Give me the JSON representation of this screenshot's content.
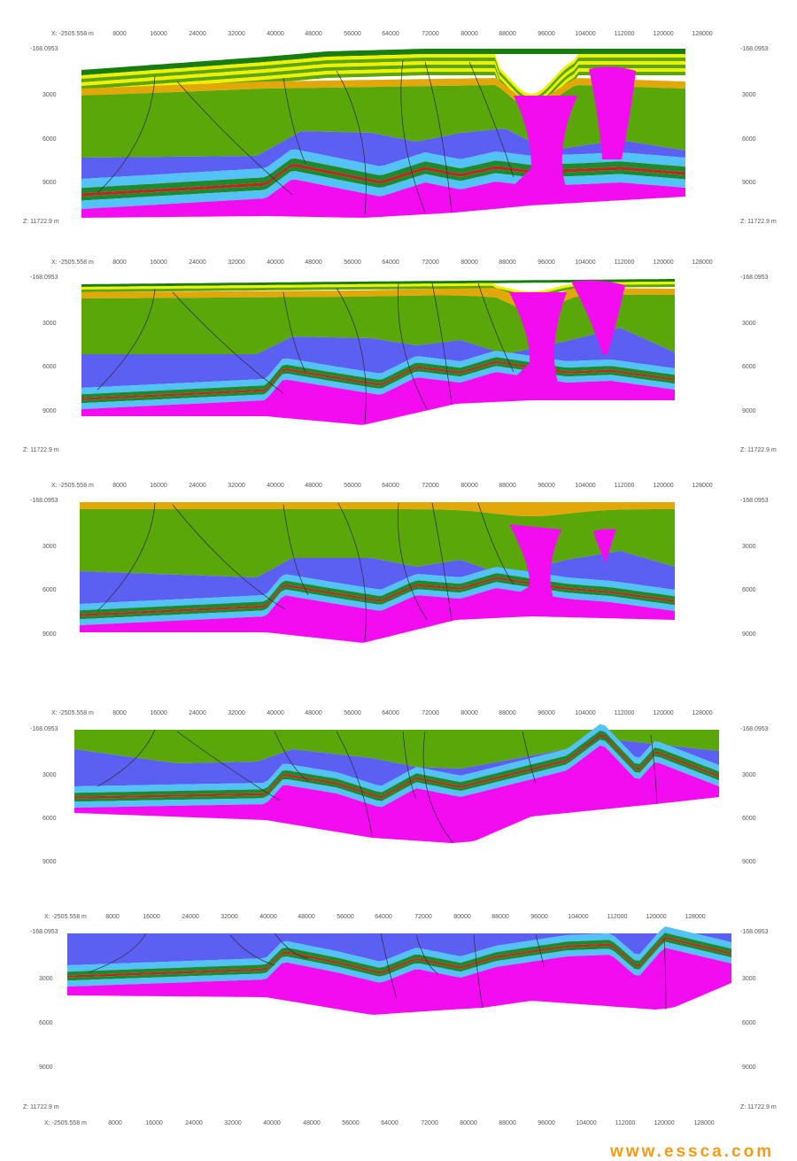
{
  "axis_x_start": "X: -2505.558 m",
  "axis_z_top": "-168.0953",
  "axis_z_bottom": "Z: 11722.9 m",
  "x_ticks": [
    "8000",
    "16000",
    "24000",
    "32000",
    "40000",
    "48000",
    "56000",
    "64000",
    "72000",
    "80000",
    "88000",
    "96000",
    "104000",
    "112000",
    "120000",
    "128000"
  ],
  "depth_ticks": [
    "3000",
    "6000",
    "9000"
  ],
  "colors": {
    "dark_green": "#177d0f",
    "yellow": "#f0f000",
    "orange": "#e2a80a",
    "light_green": "#5aa70a",
    "blue": "#5b5ff2",
    "light_blue": "#53c2f7",
    "red": "#c0261d",
    "green_band": "#1d8a2e",
    "magenta": "#f40cf0",
    "watermark": "#f39c12"
  },
  "watermark": "www.essca.com",
  "sections": [
    {
      "id": "section-1",
      "stage": "upper units preserved"
    },
    {
      "id": "section-2",
      "stage": "upper units partly eroded"
    },
    {
      "id": "section-3",
      "stage": "orange unit at top"
    },
    {
      "id": "section-4",
      "stage": "green unit at top"
    },
    {
      "id": "section-5",
      "stage": "blue unit at top"
    }
  ]
}
